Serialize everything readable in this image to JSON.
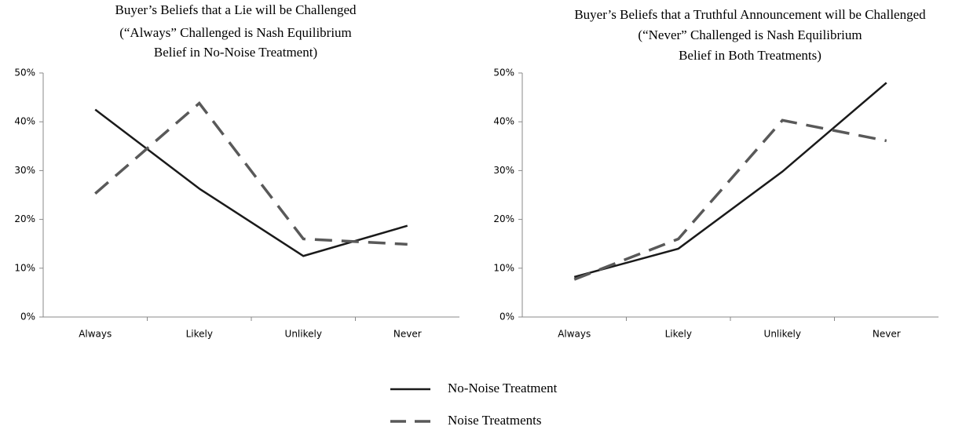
{
  "chart_data": [
    {
      "type": "line",
      "title": [
        "Buyer’s Beliefs that a Lie will be Challenged",
        "(“Always” Challenged is Nash Equilibrium",
        "Belief  in No-Noise Treatment)"
      ],
      "categories": [
        "Always",
        "Likely",
        "Unlikely",
        "Never"
      ],
      "series": [
        {
          "name": "No-Noise Treatment",
          "color": "#1a1a1a",
          "dash": false,
          "values": [
            42.5,
            26.3,
            12.5,
            18.7
          ]
        },
        {
          "name": "Noise Treatments",
          "color": "#595959",
          "dash": true,
          "values": [
            25.3,
            43.8,
            16.0,
            14.9
          ]
        }
      ],
      "ylim": [
        0,
        50
      ],
      "yticks": [
        {
          "value": 0,
          "label": "0%"
        },
        {
          "value": 10,
          "label": "10%"
        },
        {
          "value": 20,
          "label": "20%"
        },
        {
          "value": 30,
          "label": "30%"
        },
        {
          "value": 40,
          "label": "40%"
        },
        {
          "value": 50,
          "label": "50%"
        }
      ]
    },
    {
      "type": "line",
      "title": [
        "Buyer’s Beliefs that a Truthful Announcement will be Challenged",
        "(“Never” Challenged is Nash Equilibrium",
        "Belief in Both Treatments)"
      ],
      "categories": [
        "Always",
        "Likely",
        "Unlikely",
        "Never"
      ],
      "series": [
        {
          "name": "No-Noise Treatment",
          "color": "#1a1a1a",
          "dash": false,
          "values": [
            8.2,
            14.0,
            29.8,
            48.0
          ]
        },
        {
          "name": "Noise Treatments",
          "color": "#595959",
          "dash": true,
          "values": [
            7.7,
            16.0,
            40.3,
            36.1
          ]
        }
      ],
      "ylim": [
        0,
        50
      ],
      "yticks": [
        {
          "value": 0,
          "label": "0%"
        },
        {
          "value": 10,
          "label": "10%"
        },
        {
          "value": 20,
          "label": "20%"
        },
        {
          "value": 30,
          "label": "30%"
        },
        {
          "value": 40,
          "label": "40%"
        },
        {
          "value": 50,
          "label": "50%"
        }
      ]
    }
  ]
}
